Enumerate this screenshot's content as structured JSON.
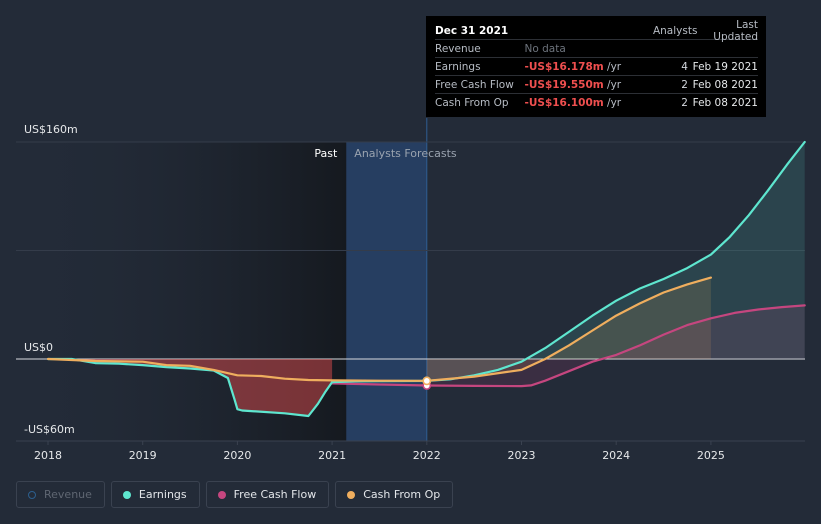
{
  "colors": {
    "earnings": "#5ee6cf",
    "fcf": "#c5467f",
    "cfo": "#efae5e",
    "revenue": "#2c5f8e",
    "negative": "#ef4f4f",
    "past_band": "#15191f",
    "forecast_band": "#274268"
  },
  "tooltip": {
    "title": "Dec 31 2021",
    "col_analysts": "Analysts",
    "col_updated": "Last Updated",
    "rows": [
      {
        "label": "Revenue",
        "value": "No data",
        "unit": "",
        "analysts": "",
        "updated": ""
      },
      {
        "label": "Earnings",
        "value": "-US$16.178m",
        "unit": "/yr",
        "analysts": "4",
        "updated": "Feb 19 2021"
      },
      {
        "label": "Free Cash Flow",
        "value": "-US$19.550m",
        "unit": "/yr",
        "analysts": "2",
        "updated": "Feb 08 2021"
      },
      {
        "label": "Cash From Op",
        "value": "-US$16.100m",
        "unit": "/yr",
        "analysts": "2",
        "updated": "Feb 08 2021"
      }
    ]
  },
  "legend": [
    {
      "key": "revenue",
      "label": "Revenue",
      "active": false
    },
    {
      "key": "earnings",
      "label": "Earnings",
      "active": true
    },
    {
      "key": "fcf",
      "label": "Free Cash Flow",
      "active": true
    },
    {
      "key": "cfo",
      "label": "Cash From Op",
      "active": true
    }
  ],
  "chart_data": {
    "type": "line",
    "xlim": [
      2018,
      2025.99
    ],
    "ylim": [
      -60,
      160
    ],
    "y_ticks": [
      {
        "value": 160,
        "label": "US$160m"
      },
      {
        "value": 0,
        "label": "US$0"
      },
      {
        "value": -60,
        "label": "-US$60m"
      }
    ],
    "x_ticks": [
      {
        "value": 2018,
        "label": "2018"
      },
      {
        "value": 2019,
        "label": "2019"
      },
      {
        "value": 2020,
        "label": "2020"
      },
      {
        "value": 2021,
        "label": "2021"
      },
      {
        "value": 2022,
        "label": "2022"
      },
      {
        "value": 2023,
        "label": "2023"
      },
      {
        "value": 2024,
        "label": "2024"
      },
      {
        "value": 2025,
        "label": "2025"
      }
    ],
    "past_label": "Past",
    "forecast_label": "Analysts Forecasts",
    "past_end": 2021.15,
    "highlight": [
      2021.15,
      2022.0
    ],
    "marker_x": 2022.0,
    "series": [
      {
        "key": "earnings",
        "name": "Earnings",
        "points": [
          [
            2018.0,
            0
          ],
          [
            2018.25,
            0
          ],
          [
            2018.5,
            -3
          ],
          [
            2018.75,
            -3.5
          ],
          [
            2019.0,
            -4.5
          ],
          [
            2019.25,
            -6
          ],
          [
            2019.5,
            -7
          ],
          [
            2019.75,
            -8.5
          ],
          [
            2019.9,
            -14
          ],
          [
            2019.97,
            -30
          ],
          [
            2020.0,
            -37
          ],
          [
            2020.05,
            -38
          ],
          [
            2020.5,
            -40
          ],
          [
            2020.75,
            -42
          ],
          [
            2020.85,
            -33
          ],
          [
            2020.93,
            -24
          ],
          [
            2021.0,
            -17
          ],
          [
            2021.25,
            -16.5
          ],
          [
            2021.5,
            -16.3
          ],
          [
            2021.75,
            -16.2
          ],
          [
            2022.0,
            -16.178
          ],
          [
            2022.25,
            -15
          ],
          [
            2022.5,
            -12
          ],
          [
            2022.75,
            -8
          ],
          [
            2023.0,
            -2
          ],
          [
            2023.25,
            8
          ],
          [
            2023.5,
            20
          ],
          [
            2023.75,
            32
          ],
          [
            2024.0,
            43
          ],
          [
            2024.25,
            52
          ],
          [
            2024.5,
            59
          ],
          [
            2024.75,
            67
          ],
          [
            2025.0,
            77
          ],
          [
            2025.2,
            90
          ],
          [
            2025.4,
            106
          ],
          [
            2025.6,
            124
          ],
          [
            2025.8,
            143
          ],
          [
            2025.99,
            160
          ]
        ]
      },
      {
        "key": "fcf",
        "name": "Free Cash Flow",
        "points": [
          [
            2021.0,
            -18
          ],
          [
            2021.5,
            -18.8
          ],
          [
            2022.0,
            -19.55
          ],
          [
            2022.5,
            -19.8
          ],
          [
            2023.0,
            -20
          ],
          [
            2023.1,
            -19.5
          ],
          [
            2023.25,
            -16
          ],
          [
            2023.5,
            -9
          ],
          [
            2023.75,
            -2
          ],
          [
            2024.0,
            3
          ],
          [
            2024.25,
            10
          ],
          [
            2024.5,
            18
          ],
          [
            2024.75,
            25
          ],
          [
            2025.0,
            30
          ],
          [
            2025.25,
            34
          ],
          [
            2025.5,
            36.5
          ],
          [
            2025.75,
            38.3
          ],
          [
            2025.99,
            39.5
          ]
        ]
      },
      {
        "key": "cfo",
        "name": "Cash From Op",
        "points": [
          [
            2018.0,
            0
          ],
          [
            2018.5,
            -1.5
          ],
          [
            2019.0,
            -2
          ],
          [
            2019.25,
            -4.5
          ],
          [
            2019.5,
            -5
          ],
          [
            2019.75,
            -8
          ],
          [
            2020.0,
            -12
          ],
          [
            2020.25,
            -12.5
          ],
          [
            2020.5,
            -14.5
          ],
          [
            2020.75,
            -15.5
          ],
          [
            2021.0,
            -15.8
          ],
          [
            2021.5,
            -16
          ],
          [
            2022.0,
            -16.1
          ],
          [
            2022.5,
            -13
          ],
          [
            2023.0,
            -8
          ],
          [
            2023.25,
            0
          ],
          [
            2023.5,
            10
          ],
          [
            2023.75,
            21
          ],
          [
            2024.0,
            32
          ],
          [
            2024.25,
            41
          ],
          [
            2024.5,
            49
          ],
          [
            2024.75,
            55
          ],
          [
            2025.0,
            60
          ]
        ]
      }
    ]
  }
}
